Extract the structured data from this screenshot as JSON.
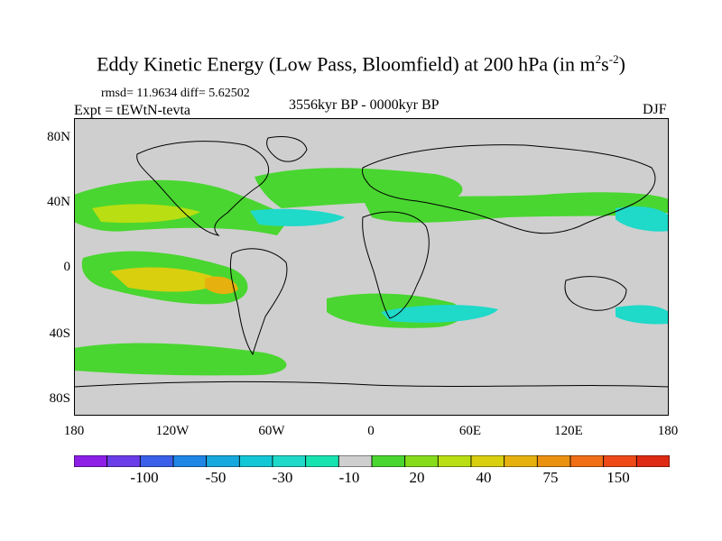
{
  "title": {
    "main": "Eddy Kinetic Energy (Low Pass, Bloomfield) at 200 hPa (in m",
    "sup1": "2",
    "mid": "s",
    "sup2": "-2",
    "end": ")"
  },
  "stats": "rmsd= 11.9634 diff= 5.62502",
  "expt": "Expt = tEWtN-tevta",
  "period": "3556kyr BP - 0000kyr BP",
  "season": "DJF",
  "lat_labels": [
    "80N",
    "40N",
    "0",
    "40S",
    "80S"
  ],
  "lon_labels": [
    "180",
    "120W",
    "60W",
    "0",
    "60E",
    "120E",
    "180"
  ],
  "colorbar": {
    "colors": [
      "#8c1ee6",
      "#6a3de8",
      "#3a5fe8",
      "#1f86e6",
      "#17a9de",
      "#14c7d6",
      "#1fd9c9",
      "#16e3b0",
      "#cfcfcf",
      "#49d630",
      "#86dc1a",
      "#b9de12",
      "#d9cf0f",
      "#e6b10f",
      "#eb9112",
      "#ef6e16",
      "#ee4a18",
      "#de2a12"
    ],
    "labels": [
      "-100",
      "-50",
      "-30",
      "-10",
      "20",
      "40",
      "75",
      "150"
    ]
  },
  "map_style": {
    "background": "#cfcfcf",
    "coast": "#000000"
  }
}
